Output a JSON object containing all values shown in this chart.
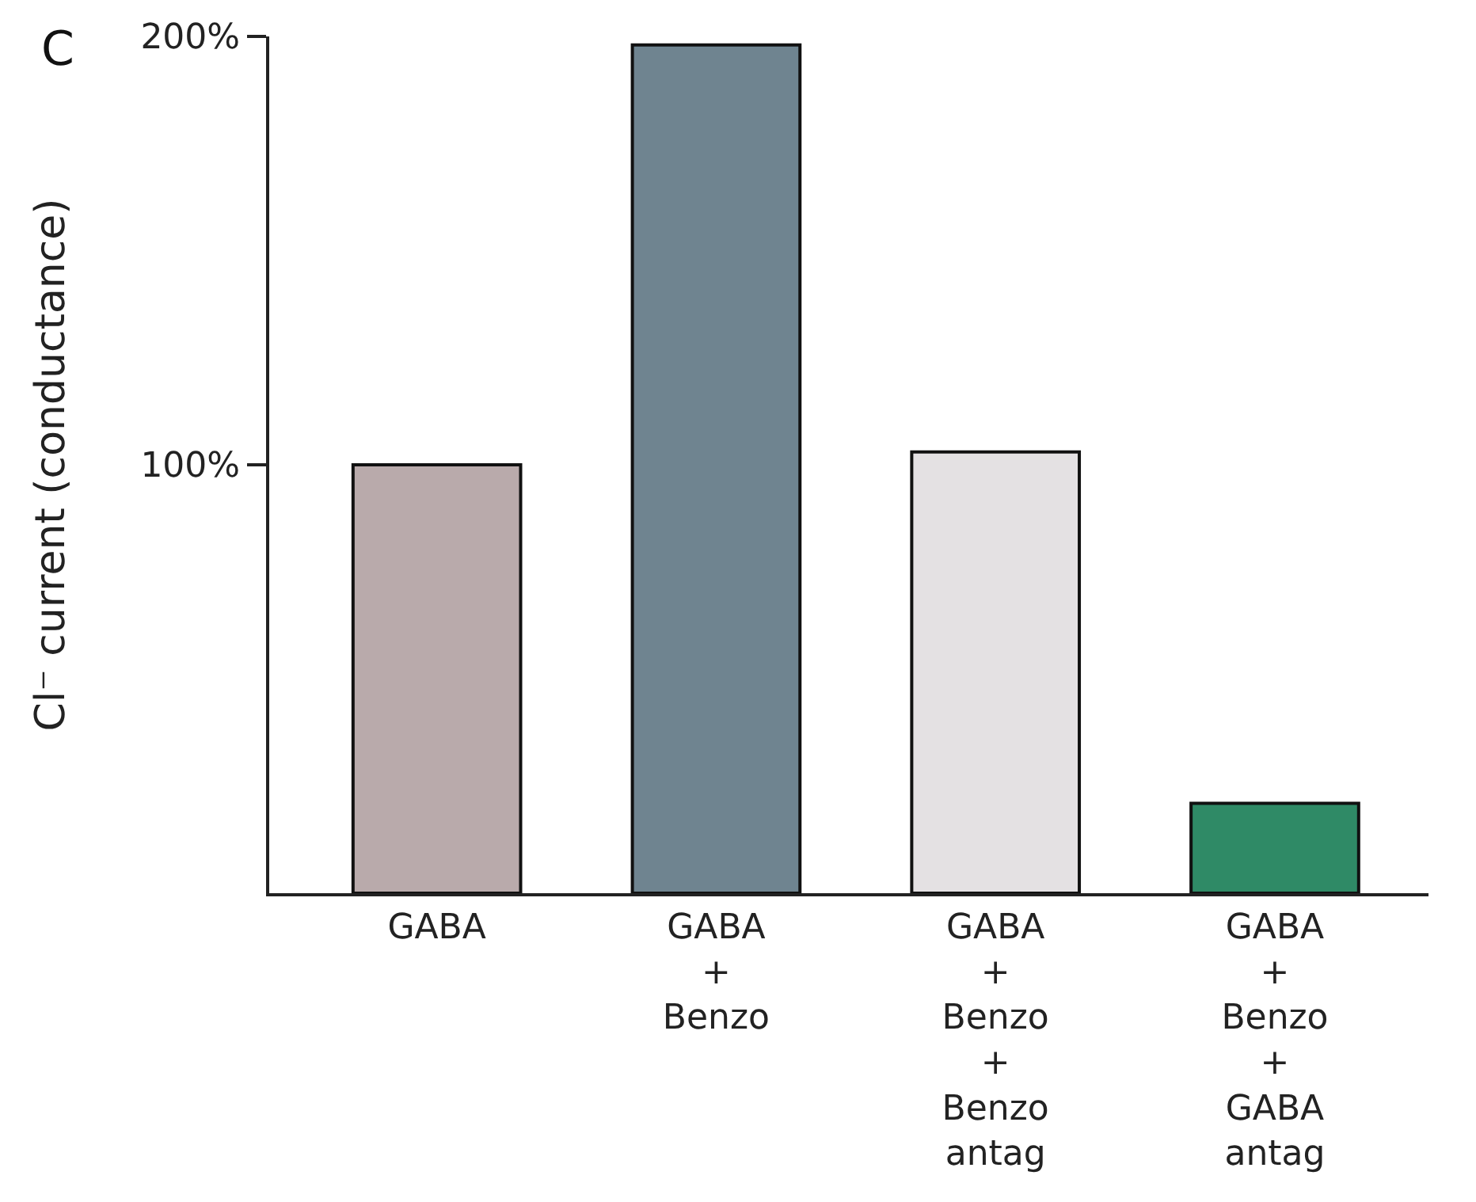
{
  "chart_data": {
    "type": "bar",
    "ylabel": "Cl⁻ current (conductance)",
    "annotations": [
      "C"
    ],
    "categories": [
      "GABA",
      "GABA\n+\nBenzo",
      "GABA\n+\nBenzo\n+\nBenzo\nantag",
      "GABA\n+\nBenzo\n+\nGABA\nantag"
    ],
    "values": [
      100,
      198,
      103,
      21
    ],
    "colors": [
      "#b9aaab",
      "#6f8490",
      "#e4e1e3",
      "#2f8a66"
    ],
    "ylim": [
      0,
      200
    ],
    "yticks": [
      {
        "value": 100,
        "label": "100%"
      },
      {
        "value": 200,
        "label": "200%"
      }
    ],
    "relative": false
  }
}
